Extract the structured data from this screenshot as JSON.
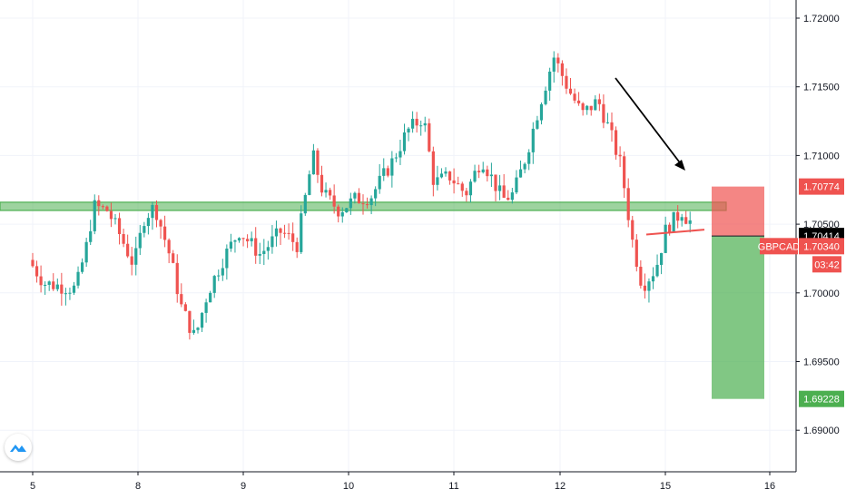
{
  "chart_data": {
    "type": "candlestick",
    "symbol": "GBPCAD",
    "y_axis": {
      "ticks": [
        "1.72000",
        "1.71500",
        "1.71000",
        "1.70500",
        "1.70000",
        "1.69500",
        "1.69000"
      ],
      "tick_values": [
        1.72,
        1.715,
        1.71,
        1.705,
        1.7,
        1.695,
        1.69
      ],
      "ylim": [
        1.6857,
        1.7215
      ]
    },
    "x_axis": {
      "ticks": [
        "5",
        "8",
        "9",
        "10",
        "11",
        "12",
        "15",
        "16"
      ],
      "tick_positions": [
        0,
        1,
        2,
        3,
        4,
        5,
        6,
        7
      ]
    },
    "price_labels": {
      "stop_loss": "1.70774",
      "current_price": "1.70414",
      "symbol_price": "1.70340",
      "countdown": "03:42",
      "take_profit": "1.69228"
    },
    "support_zone": {
      "low": 1.706,
      "high": 1.7066
    },
    "position": {
      "entry": 1.70414,
      "stop": 1.70774,
      "target": 1.69228
    },
    "colors": {
      "up": "#26a69a",
      "down": "#ef5350",
      "zone": "#4caf50",
      "stop": "#ef5350",
      "target": "#4caf50",
      "text": "#131722",
      "grid": "#f0f3fa"
    }
  },
  "branding": {
    "logo_icon": "tradingview-logo-icon"
  }
}
